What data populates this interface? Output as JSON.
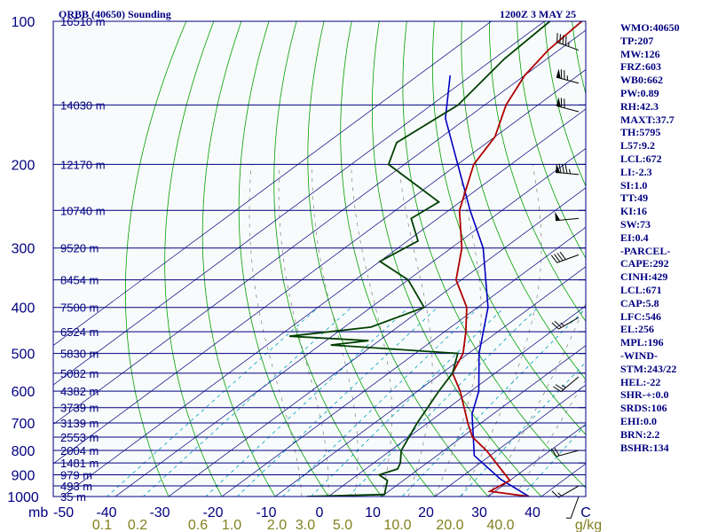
{
  "header": {
    "station": "ORBB (40650) Sounding",
    "time": "1200Z  3 MAY 25"
  },
  "indices": [
    "WMO:40650",
    "TP:207",
    "MW:126",
    "FRZ:603",
    "WB0:662",
    "PW:0.89",
    "RH:42.3",
    "MAXT:37.7",
    "TH:5795",
    "L57:9.2",
    "LCL:672",
    "LI:-2.3",
    "SI:1.0",
    "TT:49",
    "KI:16",
    "SW:73",
    "EI:0.4",
    "-PARCEL-",
    "CAPE:292",
    "CINH:429",
    "LCL:671",
    "CAP:5.8",
    "LFC:546",
    "EL:256",
    "MPL:196",
    "-WIND-",
    "STM:243/22",
    "HEL:-22",
    "SHR-+:0.0",
    "SRDS:106",
    "EHI:0.0",
    "BRN:2.2",
    "BSHR:134"
  ],
  "colors": {
    "background": "#f8fbfb",
    "isobar": "#000080",
    "isotherm": "#000080",
    "dry_adiabat": "#00a000",
    "moist_adiabat": "#808080",
    "mixing_ratio": "#00a0c0",
    "temperature": "#b00000",
    "dewpoint": "#004000",
    "parcel": "#0000c0",
    "text": "#000080"
  },
  "chart_data": {
    "type": "skew-t",
    "pressure_ticks": [
      "100",
      "200",
      "300",
      "400",
      "500",
      "600",
      "700",
      "800",
      "900",
      "1000"
    ],
    "pressure_unit": "mb",
    "temperature_ticks": [
      "-50",
      "-40",
      "-30",
      "-20",
      "-10",
      "0",
      "10",
      "20",
      "30",
      "40",
      "C"
    ],
    "mixing_ratio_ticks": [
      "0.1",
      "0.2",
      "0.6",
      "1.0",
      "2.0",
      "3.0",
      "5.0",
      "10.0",
      "20.0",
      "40.0",
      "g/kg"
    ],
    "height_labels": [
      {
        "p": 100,
        "label": "16510 m"
      },
      {
        "p": 150,
        "label": "14030 m"
      },
      {
        "p": 200,
        "label": "12170 m"
      },
      {
        "p": 250,
        "label": "10740 m"
      },
      {
        "p": 300,
        "label": "9520 m"
      },
      {
        "p": 350,
        "label": "8454 m"
      },
      {
        "p": 400,
        "label": "7500 m"
      },
      {
        "p": 450,
        "label": "6524 m"
      },
      {
        "p": 500,
        "label": "5830 m"
      },
      {
        "p": 550,
        "label": "5082 m"
      },
      {
        "p": 600,
        "label": "4382 m"
      },
      {
        "p": 650,
        "label": "3739 m"
      },
      {
        "p": 700,
        "label": "3139 m"
      },
      {
        "p": 750,
        "label": "2553 m"
      },
      {
        "p": 800,
        "label": "2004 m"
      },
      {
        "p": 850,
        "label": "1481 m"
      },
      {
        "p": 900,
        "label": "979 m"
      },
      {
        "p": 950,
        "label": "493 m"
      },
      {
        "p": 1000,
        "label": "35 m"
      }
    ],
    "temperature": [
      {
        "p": 1000,
        "t": 37.7
      },
      {
        "p": 975,
        "t": 29
      },
      {
        "p": 925,
        "t": 30
      },
      {
        "p": 850,
        "t": 23
      },
      {
        "p": 800,
        "t": 18
      },
      {
        "p": 750,
        "t": 12
      },
      {
        "p": 700,
        "t": 7.5
      },
      {
        "p": 600,
        "t": -2
      },
      {
        "p": 550,
        "t": -8
      },
      {
        "p": 500,
        "t": -11
      },
      {
        "p": 450,
        "t": -16
      },
      {
        "p": 400,
        "t": -22
      },
      {
        "p": 350,
        "t": -31
      },
      {
        "p": 300,
        "t": -38
      },
      {
        "p": 250,
        "t": -48
      },
      {
        "p": 200,
        "t": -57
      },
      {
        "p": 175,
        "t": -60
      },
      {
        "p": 150,
        "t": -66
      },
      {
        "p": 130,
        "t": -70
      },
      {
        "p": 115,
        "t": -72
      },
      {
        "p": 100,
        "t": -73
      }
    ],
    "dewpoint": [
      {
        "p": 1000,
        "t": -4
      },
      {
        "p": 990,
        "t": 10
      },
      {
        "p": 925,
        "t": 7
      },
      {
        "p": 900,
        "t": 4
      },
      {
        "p": 875,
        "t": 6
      },
      {
        "p": 850,
        "t": 5
      },
      {
        "p": 800,
        "t": 2
      },
      {
        "p": 700,
        "t": -2
      },
      {
        "p": 600,
        "t": -6
      },
      {
        "p": 550,
        "t": -8
      },
      {
        "p": 500,
        "t": -12
      },
      {
        "p": 480,
        "t": -38
      },
      {
        "p": 470,
        "t": -32
      },
      {
        "p": 460,
        "t": -48
      },
      {
        "p": 440,
        "t": -35
      },
      {
        "p": 400,
        "t": -30
      },
      {
        "p": 350,
        "t": -40
      },
      {
        "p": 320,
        "t": -50
      },
      {
        "p": 290,
        "t": -48
      },
      {
        "p": 260,
        "t": -55
      },
      {
        "p": 240,
        "t": -54
      },
      {
        "p": 200,
        "t": -73
      },
      {
        "p": 180,
        "t": -77
      },
      {
        "p": 150,
        "t": -75
      },
      {
        "p": 120,
        "t": -78
      },
      {
        "p": 100,
        "t": -79
      }
    ],
    "parcel": [
      {
        "p": 1000,
        "t": 37.7
      },
      {
        "p": 920,
        "t": 28
      },
      {
        "p": 820,
        "t": 17
      },
      {
        "p": 670,
        "t": 6
      },
      {
        "p": 600,
        "t": 1.5
      },
      {
        "p": 500,
        "t": -8
      },
      {
        "p": 400,
        "t": -18
      },
      {
        "p": 300,
        "t": -34
      },
      {
        "p": 250,
        "t": -46
      },
      {
        "p": 200,
        "t": -60
      },
      {
        "p": 160,
        "t": -74
      },
      {
        "p": 130,
        "t": -84
      }
    ],
    "isotherms": [
      -90,
      -80,
      -70,
      -60,
      -50,
      -40,
      -30,
      -20,
      -10,
      0,
      10,
      20,
      30,
      40,
      50
    ],
    "dry_adiabats_theta": [
      -30,
      -20,
      -10,
      0,
      10,
      20,
      30,
      40,
      50,
      60,
      70,
      80,
      90,
      100,
      110,
      120,
      130,
      140,
      150,
      160,
      170,
      180,
      190,
      200
    ],
    "moist_adiabats_twb": [
      -5,
      0,
      5,
      10,
      15,
      20,
      25,
      30,
      35
    ],
    "mixing_ratios": [
      0.1,
      0.2,
      0.6,
      1.0,
      2.0,
      3.0,
      5.0,
      10.0,
      20.0,
      40.0
    ],
    "wind_barbs": [
      {
        "p": 115,
        "dir": 290,
        "spd": 45
      },
      {
        "p": 135,
        "dir": 285,
        "spd": 75
      },
      {
        "p": 155,
        "dir": 285,
        "spd": 70
      },
      {
        "p": 210,
        "dir": 275,
        "spd": 85
      },
      {
        "p": 260,
        "dir": 265,
        "spd": 50
      },
      {
        "p": 310,
        "dir": 250,
        "spd": 40
      },
      {
        "p": 420,
        "dir": 240,
        "spd": 25
      },
      {
        "p": 560,
        "dir": 230,
        "spd": 25
      },
      {
        "p": 800,
        "dir": 255,
        "spd": 20
      },
      {
        "p": 950,
        "dir": 240,
        "spd": 15
      },
      {
        "p": 1000,
        "dir": 200,
        "spd": 5
      }
    ]
  }
}
